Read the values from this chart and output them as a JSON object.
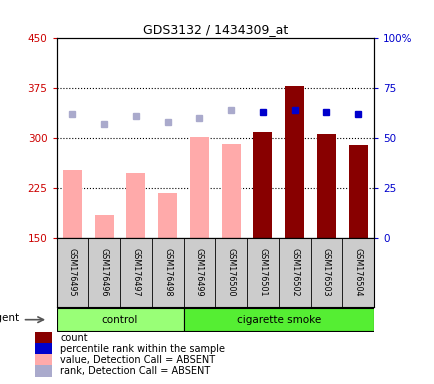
{
  "title": "GDS3132 / 1434309_at",
  "samples": [
    "GSM176495",
    "GSM176496",
    "GSM176497",
    "GSM176498",
    "GSM176499",
    "GSM176500",
    "GSM176501",
    "GSM176502",
    "GSM176503",
    "GSM176504"
  ],
  "bar_values": [
    252,
    185,
    248,
    218,
    302,
    292,
    310,
    378,
    307,
    290
  ],
  "bar_absent": [
    true,
    true,
    true,
    true,
    true,
    true,
    false,
    false,
    false,
    false
  ],
  "rank_values": [
    62,
    57,
    61,
    58,
    60,
    64,
    63,
    64,
    63,
    62
  ],
  "rank_absent": [
    true,
    true,
    true,
    true,
    true,
    true,
    false,
    false,
    false,
    false
  ],
  "ylim_left": [
    150,
    450
  ],
  "ylim_right": [
    0,
    100
  ],
  "yticks_left": [
    150,
    225,
    300,
    375,
    450
  ],
  "yticks_right": [
    0,
    25,
    50,
    75,
    100
  ],
  "left_tick_color": "#cc0000",
  "right_tick_color": "#0000cc",
  "bar_color_absent": "#ffaaaa",
  "bar_color_present": "#880000",
  "rank_color_absent": "#aaaacc",
  "rank_color_present": "#0000cc",
  "bg_plot": "#ffffff",
  "bg_xtick": "#cccccc",
  "control_color": "#99ff77",
  "smoke_color": "#55ee33",
  "legend_items": [
    {
      "color": "#880000",
      "label": "count",
      "marker": "s"
    },
    {
      "color": "#0000cc",
      "label": "percentile rank within the sample",
      "marker": "s"
    },
    {
      "color": "#ffaaaa",
      "label": "value, Detection Call = ABSENT",
      "marker": "s"
    },
    {
      "color": "#aaaacc",
      "label": "rank, Detection Call = ABSENT",
      "marker": "s"
    }
  ]
}
